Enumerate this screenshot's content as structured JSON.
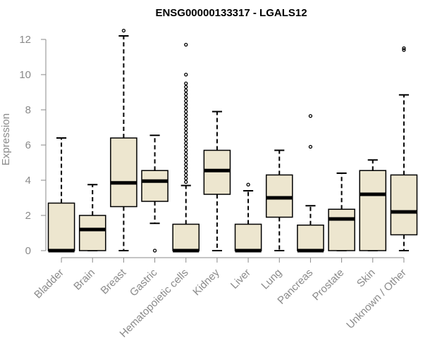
{
  "chart_data": {
    "type": "boxplot",
    "title": "ENSG00000133317 - LGALS12",
    "ylabel": "Expression",
    "xlabel": "",
    "ylim": [
      0,
      12
    ],
    "yticks": [
      0,
      2,
      4,
      6,
      8,
      10,
      12
    ],
    "box_fill": "#ede6cf",
    "line_color": "#000000",
    "axis_color": "#8a8a8a",
    "categories": [
      "Bladder",
      "Brain",
      "Breast",
      "Gastric",
      "Hematopoietic cells",
      "Kidney",
      "Liver",
      "Lung",
      "Pancreas",
      "Prostate",
      "Skin",
      "Unknown / Other"
    ],
    "boxes": [
      {
        "q1": 0,
        "median": 0,
        "q3": 2.7,
        "whisker_low": 0,
        "whisker_high": 6.4,
        "outliers": []
      },
      {
        "q1": 0,
        "median": 1.2,
        "q3": 2.0,
        "whisker_low": 0,
        "whisker_high": 3.75,
        "outliers": []
      },
      {
        "q1": 2.5,
        "median": 3.85,
        "q3": 6.4,
        "whisker_low": 0,
        "whisker_high": 12.2,
        "outliers": [
          12.5
        ]
      },
      {
        "q1": 2.8,
        "median": 3.95,
        "q3": 4.55,
        "whisker_low": 1.55,
        "whisker_high": 6.55,
        "outliers": [
          0
        ]
      },
      {
        "q1": 0,
        "median": 0,
        "q3": 1.5,
        "whisker_low": 0,
        "whisker_high": 3.7,
        "outliers": [
          3.9,
          4.1,
          4.3,
          4.5,
          4.7,
          4.9,
          5.1,
          5.3,
          5.5,
          5.7,
          5.9,
          6.1,
          6.3,
          6.5,
          6.7,
          6.9,
          7.1,
          7.3,
          7.5,
          7.7,
          7.9,
          8.1,
          8.3,
          8.5,
          8.7,
          8.9,
          9.1,
          9.3,
          9.5,
          10.0,
          11.7
        ]
      },
      {
        "q1": 3.2,
        "median": 4.55,
        "q3": 5.7,
        "whisker_low": 0,
        "whisker_high": 7.9,
        "outliers": []
      },
      {
        "q1": 0,
        "median": 0,
        "q3": 1.5,
        "whisker_low": 0,
        "whisker_high": 3.4,
        "outliers": [
          3.75
        ]
      },
      {
        "q1": 1.9,
        "median": 3.0,
        "q3": 4.3,
        "whisker_low": 0,
        "whisker_high": 5.7,
        "outliers": []
      },
      {
        "q1": 0,
        "median": 0,
        "q3": 1.45,
        "whisker_low": 0,
        "whisker_high": 2.55,
        "outliers": [
          5.9,
          7.65
        ]
      },
      {
        "q1": 0,
        "median": 1.8,
        "q3": 2.35,
        "whisker_low": 0,
        "whisker_high": 4.4,
        "outliers": []
      },
      {
        "q1": 0,
        "median": 3.2,
        "q3": 4.55,
        "whisker_low": 0,
        "whisker_high": 5.15,
        "outliers": []
      },
      {
        "q1": 0.9,
        "median": 2.2,
        "q3": 4.3,
        "whisker_low": 0,
        "whisker_high": 8.85,
        "outliers": [
          11.4,
          11.5
        ]
      }
    ]
  }
}
